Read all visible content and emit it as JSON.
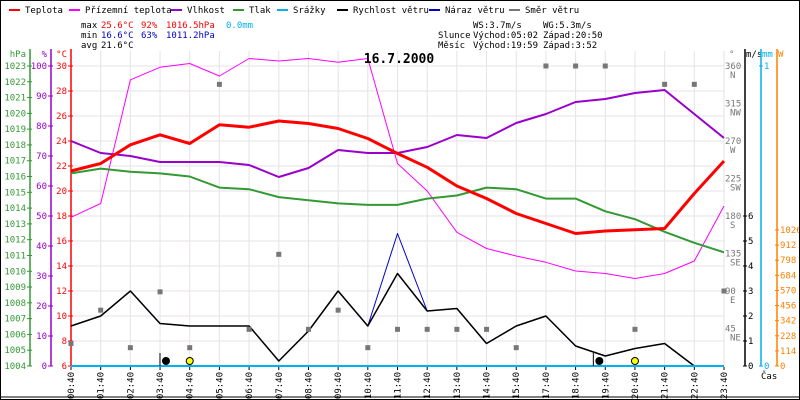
{
  "legend": [
    {
      "label": "Teplota",
      "color": "#ff0000"
    },
    {
      "label": "Přízemní teplota",
      "color": "#ff00ff"
    },
    {
      "label": "Vlhkost",
      "color": "#9900cc"
    },
    {
      "label": "Tlak",
      "color": "#339933"
    },
    {
      "label": "Srážky",
      "color": "#00b0f0"
    },
    {
      "label": "Rychlost větru",
      "color": "#000000"
    },
    {
      "label": "Náraz větru",
      "color": "#0000cc"
    },
    {
      "label": "Směr větru",
      "color": "#777777"
    }
  ],
  "stats": {
    "max_label": "max",
    "max_temp": "25.6°C",
    "max_hum": "92%",
    "max_press": "1016.5hPa",
    "rain": "0.0mm",
    "min_label": "min",
    "min_temp": "16.6°C",
    "min_hum": "63%",
    "min_press": "1011.2hPa",
    "avg_label": "avg",
    "avg_temp": "21.6°C",
    "ws": "WS:3.7m/s",
    "wg": "WG:5.3m/s",
    "sun_label": "Slunce",
    "sun_rise": "Východ:05:02",
    "sun_set": "Západ:20:50",
    "moon_label": "Měsíc",
    "moon_rise": "Východ:19:59",
    "moon_set": "Západ:3:52"
  },
  "chart_data": {
    "type": "line",
    "title": "16.7.2000",
    "xlabel": "Čas",
    "x": [
      "00:40",
      "01:40",
      "02:40",
      "03:40",
      "04:40",
      "05:40",
      "06:40",
      "07:40",
      "08:40",
      "09:40",
      "10:40",
      "11:40",
      "12:40",
      "13:40",
      "14:40",
      "15:40",
      "17:40",
      "18:40",
      "19:40",
      "20:40",
      "21:40",
      "22:40",
      "23:40"
    ],
    "grid": true,
    "series": [
      {
        "name": "Přízemní teplota",
        "axis": "temp",
        "color": "#ff00ff",
        "width": 1,
        "values": [
          17.9,
          19.0,
          28.9,
          29.9,
          30.2,
          29.2,
          30.6,
          30.4,
          30.6,
          30.3,
          30.6,
          22.2,
          20.0,
          16.7,
          15.4,
          14.8,
          14.3,
          13.6,
          13.4,
          13.0,
          13.4,
          14.4,
          18.8
        ]
      },
      {
        "name": "Tlak",
        "axis": "press",
        "color": "#339933",
        "width": 2,
        "values": [
          1016.2,
          1016.5,
          1016.3,
          1016.2,
          1016.0,
          1015.3,
          1015.2,
          1014.7,
          1014.5,
          1014.3,
          1014.2,
          1014.2,
          1014.6,
          1014.8,
          1015.3,
          1015.2,
          1014.6,
          1014.6,
          1013.8,
          1013.3,
          1012.5,
          1011.8,
          1011.2
        ]
      },
      {
        "name": "Vlhkost",
        "axis": "hum",
        "color": "#9900cc",
        "width": 2,
        "values": [
          75,
          71,
          70,
          68,
          68,
          68,
          67,
          63,
          66,
          72,
          71,
          71,
          73,
          77,
          76,
          81,
          84,
          88,
          89,
          91,
          92,
          84,
          76
        ]
      },
      {
        "name": "Teplota",
        "axis": "temp",
        "color": "#ff0000",
        "width": 3,
        "values": [
          21.6,
          22.2,
          23.7,
          24.5,
          23.8,
          25.3,
          25.1,
          25.6,
          25.4,
          25.0,
          24.2,
          23.0,
          21.9,
          20.4,
          19.4,
          18.2,
          17.4,
          16.6,
          16.8,
          16.9,
          17.0,
          19.8,
          22.4
        ]
      },
      {
        "name": "Náraz větru",
        "axis": "wind",
        "color": "#0000cc",
        "width": 1,
        "values": [
          1.6,
          2.0,
          3.0,
          1.7,
          1.6,
          1.6,
          1.6,
          0.2,
          1.4,
          3.0,
          1.6,
          5.3,
          2.2,
          2.3,
          0.9,
          1.6,
          2.0,
          0.8,
          0.4,
          0.7,
          0.9,
          0,
          0
        ]
      },
      {
        "name": "Rychlost větru",
        "axis": "wind",
        "color": "#000000",
        "width": 1.5,
        "values": [
          1.6,
          2.0,
          3.0,
          1.7,
          1.6,
          1.6,
          1.6,
          0.2,
          1.4,
          3.0,
          1.6,
          3.7,
          2.2,
          2.3,
          0.9,
          1.6,
          2.0,
          0.8,
          0.4,
          0.7,
          0.9,
          0,
          0
        ]
      },
      {
        "name": "Srážky",
        "axis": "rain",
        "color": "#00b0f0",
        "width": 2,
        "values": [
          0,
          0,
          0,
          0,
          0,
          0,
          0,
          0,
          0,
          0,
          0,
          0,
          0,
          0,
          0,
          0,
          0,
          0,
          0,
          0,
          0,
          0,
          0
        ]
      },
      {
        "name": "Směr větru",
        "axis": "dir",
        "color": "#777777",
        "marker": "square",
        "values": [
          27,
          67,
          22,
          89,
          22,
          338,
          44,
          134,
          44,
          67,
          22,
          44,
          44,
          44,
          44,
          22,
          360,
          360,
          360,
          44,
          338,
          338,
          90
        ]
      }
    ],
    "axes": {
      "press": {
        "label": "hPa",
        "color": "#339933",
        "range": [
          1004,
          1023
        ],
        "ticks": [
          1004,
          1005,
          1006,
          1007,
          1008,
          1009,
          1010,
          1011,
          1012,
          1013,
          1014,
          1015,
          1016,
          1017,
          1018,
          1019,
          1020,
          1021,
          1022,
          1023
        ]
      },
      "hum": {
        "label": "%",
        "color": "#9900cc",
        "range": [
          0,
          100
        ],
        "ticks": [
          0,
          10,
          20,
          30,
          40,
          50,
          60,
          70,
          80,
          90,
          100
        ]
      },
      "temp": {
        "label": "°C",
        "color": "#ff0000",
        "range": [
          6,
          30
        ],
        "ticks": [
          6,
          8,
          10,
          12,
          14,
          16,
          18,
          20,
          22,
          24,
          26,
          28,
          30
        ]
      },
      "dir": {
        "label": "°",
        "color": "#777777",
        "range": [
          0,
          360
        ],
        "ticks": [
          {
            "v": 45,
            "t": "45",
            "c": "NE"
          },
          {
            "v": 90,
            "t": "90",
            "c": "E"
          },
          {
            "v": 135,
            "t": "135",
            "c": "SE"
          },
          {
            "v": 180,
            "t": "180",
            "c": "S"
          },
          {
            "v": 225,
            "t": "225",
            "c": "SW"
          },
          {
            "v": 270,
            "t": "270",
            "c": "W"
          },
          {
            "v": 315,
            "t": "315",
            "c": "NW"
          },
          {
            "v": 360,
            "t": "360",
            "c": "N"
          }
        ]
      },
      "wind": {
        "label": "m/s",
        "color": "#000000",
        "range": [
          0,
          12
        ],
        "ticks": [
          0,
          1,
          2,
          3,
          4,
          5,
          6
        ]
      },
      "rain": {
        "label": "mm",
        "color": "#00b0f0",
        "range": [
          0,
          1
        ],
        "ticks": [
          0,
          1
        ]
      },
      "solar": {
        "label": "W",
        "color": "#ff8000",
        "range": [
          0,
          2262
        ],
        "ticks": [
          0,
          114,
          228,
          342,
          456,
          570,
          684,
          798,
          912,
          1026
        ]
      }
    },
    "events": [
      {
        "name": "moon-set",
        "index": 3.2,
        "color": "#000000"
      },
      {
        "name": "sun-rise",
        "index": 4,
        "color": "#ffff00"
      },
      {
        "name": "moon-rise",
        "index": 17.8,
        "color": "#000000"
      },
      {
        "name": "sun-set",
        "index": 19,
        "color": "#ffff00"
      }
    ]
  }
}
